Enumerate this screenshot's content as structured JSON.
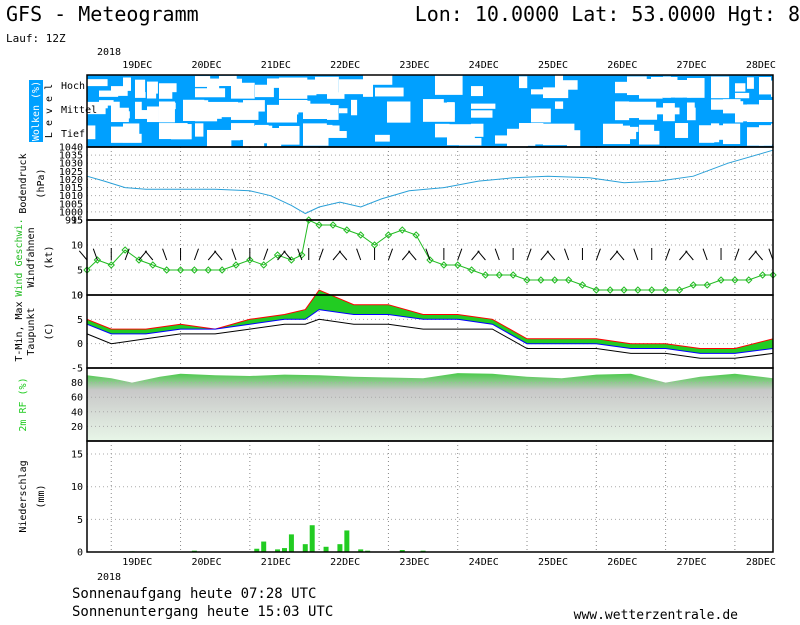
{
  "header": {
    "title": "GFS - Meteogramm",
    "location": "Lon: 10.0000 Lat: 53.0000 Hgt: 8",
    "run": "Lauf: 12Z"
  },
  "footer": {
    "sunrise": "Sonnenaufgang heute 07:28 UTC",
    "sunset": "Sonnenuntergang heute 15:03 UTC",
    "credit": "www.wetterzentrale.de"
  },
  "colors": {
    "cloud": "#00a0ff",
    "pressure": "#2aa0d8",
    "wind": "#22bb22",
    "tmin": "#0000ff",
    "tmax": "#ff0000",
    "dew": "#000000",
    "rh": "#22cc22",
    "precip": "#22cc22",
    "precip_snow": "#ff3333"
  },
  "chart_data": [
    {
      "type": "heatmap",
      "panel": "clouds",
      "ylabel": "Wolken (%)",
      "ylabel2": "L e v e l",
      "levels": [
        "Hoch",
        "Mittel",
        "Tief"
      ],
      "x": {
        "year": "2018",
        "dates": [
          "19DEC",
          "20DEC",
          "21DEC",
          "22DEC",
          "23DEC",
          "24DEC",
          "25DEC",
          "26DEC",
          "27DEC",
          "28DEC"
        ]
      },
      "x_range_days": [
        -0.35,
        9.55
      ]
    },
    {
      "type": "line",
      "panel": "pressure",
      "ylabel": "Bodendruck",
      "unit": "(hPa)",
      "ylim": [
        995,
        1040
      ],
      "yticks": [
        995,
        1000,
        1005,
        1010,
        1015,
        1020,
        1025,
        1030,
        1035,
        1040
      ],
      "series": [
        {
          "x": [
            -0.35,
            -0.1,
            0.2,
            0.5,
            1,
            1.5,
            2,
            2.3,
            2.6,
            2.8,
            3,
            3.3,
            3.6,
            3.9,
            4.3,
            4.8,
            5.3,
            5.8,
            6.3,
            6.9,
            7.4,
            7.9,
            8.4,
            8.9,
            9.55
          ],
          "values": [
            1022,
            1019,
            1015,
            1014,
            1014,
            1014,
            1013,
            1010,
            1004,
            999,
            1003,
            1006,
            1003,
            1008,
            1013,
            1015,
            1019,
            1021,
            1022,
            1021,
            1018,
            1019,
            1022,
            1030,
            1038
          ]
        }
      ]
    },
    {
      "type": "line",
      "panel": "wind",
      "ylabel": "Wind Geschwi.",
      "ylabel2": "Windfahnen",
      "unit": "(kt)",
      "ylim": [
        0,
        15
      ],
      "yticks": [
        0,
        5,
        10,
        15
      ],
      "series": [
        {
          "x": [
            -0.35,
            -0.2,
            0,
            0.2,
            0.4,
            0.6,
            0.8,
            1,
            1.2,
            1.4,
            1.6,
            1.8,
            2,
            2.2,
            2.4,
            2.6,
            2.75,
            2.85,
            3,
            3.2,
            3.4,
            3.6,
            3.8,
            4,
            4.2,
            4.4,
            4.6,
            4.8,
            5,
            5.2,
            5.4,
            5.6,
            5.8,
            6,
            6.2,
            6.4,
            6.6,
            6.8,
            7,
            7.2,
            7.4,
            7.6,
            7.8,
            8,
            8.2,
            8.4,
            8.6,
            8.8,
            9,
            9.2,
            9.4,
            9.55
          ],
          "values": [
            5,
            7,
            6,
            9,
            7,
            6,
            5,
            5,
            5,
            5,
            5,
            6,
            7,
            6,
            8,
            7,
            8,
            15,
            14,
            14,
            13,
            12,
            10,
            12,
            13,
            12,
            7,
            6,
            6,
            5,
            4,
            4,
            4,
            3,
            3,
            3,
            3,
            2,
            1,
            1,
            1,
            1,
            1,
            1,
            1,
            2,
            2,
            3,
            3,
            3,
            4,
            4
          ]
        }
      ]
    },
    {
      "type": "area",
      "panel": "temperature",
      "ylabel": "T-Min, Max",
      "ylabel2": "Taupunkt",
      "unit": "(C)",
      "ylim": [
        -5,
        10
      ],
      "yticks": [
        -5,
        0,
        5,
        10
      ],
      "series": [
        {
          "name": "T-Max",
          "x": [
            -0.35,
            0,
            0.5,
            1,
            1.5,
            2,
            2.5,
            2.8,
            3,
            3.5,
            4,
            4.5,
            5,
            5.5,
            6,
            6.5,
            7,
            7.5,
            8,
            8.5,
            9,
            9.55
          ],
          "values": [
            5,
            3,
            3,
            4,
            3,
            5,
            6,
            7,
            11,
            8,
            8,
            6,
            6,
            5,
            1,
            1,
            1,
            0,
            0,
            -1,
            -1,
            1
          ]
        },
        {
          "name": "T-Min",
          "x": [
            -0.35,
            0,
            0.5,
            1,
            1.5,
            2,
            2.5,
            2.8,
            3,
            3.5,
            4,
            4.5,
            5,
            5.5,
            6,
            6.5,
            7,
            7.5,
            8,
            8.5,
            9,
            9.55
          ],
          "values": [
            4,
            2,
            2,
            3,
            3,
            4,
            5,
            5,
            7,
            6,
            6,
            5,
            5,
            4,
            0,
            0,
            0,
            -1,
            -1,
            -2,
            -2,
            -1
          ]
        },
        {
          "name": "Taupunkt",
          "x": [
            -0.35,
            0,
            0.5,
            1,
            1.5,
            2,
            2.5,
            2.8,
            3,
            3.5,
            4,
            4.5,
            5,
            5.5,
            6,
            6.5,
            7,
            7.5,
            8,
            8.5,
            9,
            9.55
          ],
          "values": [
            2,
            0,
            1,
            2,
            2,
            3,
            4,
            4,
            5,
            4,
            4,
            3,
            3,
            3,
            -1,
            -1,
            -1,
            -2,
            -2,
            -3,
            -3,
            -2
          ]
        }
      ]
    },
    {
      "type": "area",
      "panel": "humidity",
      "ylabel": "2m RF (%)",
      "ylim": [
        0,
        100
      ],
      "yticks": [
        20,
        40,
        60,
        80
      ],
      "series": [
        {
          "x": [
            -0.35,
            0,
            0.3,
            0.7,
            1,
            1.5,
            2,
            2.5,
            3,
            3.5,
            4,
            4.5,
            5,
            5.5,
            6,
            6.5,
            7,
            7.5,
            8,
            8.5,
            9,
            9.55
          ],
          "values": [
            90,
            86,
            80,
            88,
            92,
            90,
            89,
            91,
            90,
            88,
            87,
            86,
            93,
            92,
            88,
            86,
            91,
            92,
            80,
            88,
            92,
            86
          ]
        }
      ]
    },
    {
      "type": "bar",
      "panel": "precipitation",
      "ylabel": "Niederschlag",
      "unit": "(mm)",
      "ylim": [
        0,
        17
      ],
      "yticks": [
        0,
        5,
        10,
        15
      ],
      "x": [
        0.3,
        1.2,
        2.1,
        2.2,
        2.4,
        2.5,
        2.6,
        2.8,
        2.9,
        3.1,
        3.3,
        3.4,
        3.6,
        3.7,
        4.2,
        4.5
      ],
      "values": [
        0.1,
        0.2,
        0.5,
        1.6,
        0.4,
        0.6,
        2.7,
        1.2,
        4.1,
        0.8,
        1.2,
        3.3,
        0.4,
        0.2,
        0.3,
        0.2
      ]
    }
  ]
}
